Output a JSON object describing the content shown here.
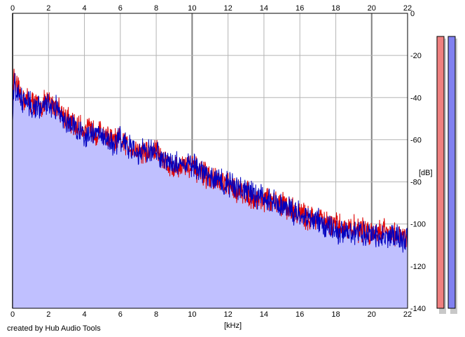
{
  "credit": "created by Hub Audio Tools",
  "chart_data": {
    "type": "area",
    "title": "",
    "xlabel": "[kHz]",
    "ylabel": "[dB]",
    "xlim": [
      0,
      22
    ],
    "ylim": [
      -140,
      0
    ],
    "x_ticks": [
      0,
      2,
      4,
      6,
      8,
      10,
      12,
      14,
      16,
      18,
      20,
      22
    ],
    "y_ticks": [
      0,
      -20,
      -40,
      -60,
      -80,
      -100,
      -120,
      -140
    ],
    "y_tick_labels": [
      "0",
      "-20",
      "-40",
      "-60",
      "-80",
      "-100",
      "-120",
      "-140"
    ],
    "grid": true,
    "fill_color": "#c0c0ff",
    "series": [
      {
        "color": "#e00000",
        "x": [
          0,
          0.1,
          0.2,
          0.5,
          1,
          1.5,
          2,
          2.5,
          3,
          3.5,
          4,
          4.5,
          5,
          5.5,
          6,
          6.5,
          7,
          7.5,
          8,
          8.5,
          9,
          9.5,
          10,
          10.5,
          11,
          11.5,
          12,
          12.5,
          13,
          13.5,
          14,
          14.5,
          15,
          15.5,
          16,
          16.5,
          17,
          17.5,
          18,
          18.5,
          19,
          19.5,
          20,
          20.5,
          21,
          21.5,
          22
        ],
        "y": [
          -38,
          -30,
          -35,
          -40,
          -42,
          -44,
          -42,
          -44,
          -50,
          -54,
          -55,
          -56,
          -57,
          -60,
          -61,
          -63,
          -65,
          -66,
          -65,
          -70,
          -74,
          -72,
          -73,
          -76,
          -78,
          -80,
          -82,
          -84,
          -85,
          -88,
          -88,
          -90,
          -90,
          -93,
          -95,
          -97,
          -97,
          -100,
          -101,
          -102,
          -102,
          -103,
          -104,
          -103,
          -103,
          -106,
          -106
        ]
      },
      {
        "color": "#0000c0",
        "x": [
          0,
          0.1,
          0.2,
          0.5,
          1,
          1.5,
          2,
          2.5,
          3,
          3.5,
          4,
          4.5,
          5,
          5.5,
          6,
          6.5,
          7,
          7.5,
          8,
          8.5,
          9,
          9.5,
          10,
          10.5,
          11,
          11.5,
          12,
          12.5,
          13,
          13.5,
          14,
          14.5,
          15,
          15.5,
          16,
          16.5,
          17,
          17.5,
          18,
          18.5,
          19,
          19.5,
          20,
          20.5,
          21,
          21.5,
          22
        ],
        "y": [
          -45,
          -32,
          -38,
          -41,
          -43,
          -45,
          -43,
          -45,
          -51,
          -55,
          -57,
          -57,
          -58,
          -61,
          -60,
          -64,
          -66,
          -66,
          -66,
          -69,
          -72,
          -71,
          -73,
          -75,
          -77,
          -80,
          -81,
          -83,
          -85,
          -86,
          -88,
          -89,
          -91,
          -93,
          -96,
          -97,
          -99,
          -101,
          -103,
          -104,
          -104,
          -105,
          -105,
          -106,
          -105,
          -107,
          -108
        ]
      }
    ],
    "level_meters": [
      {
        "color": "#f08080"
      },
      {
        "color": "#8080f0"
      }
    ]
  }
}
